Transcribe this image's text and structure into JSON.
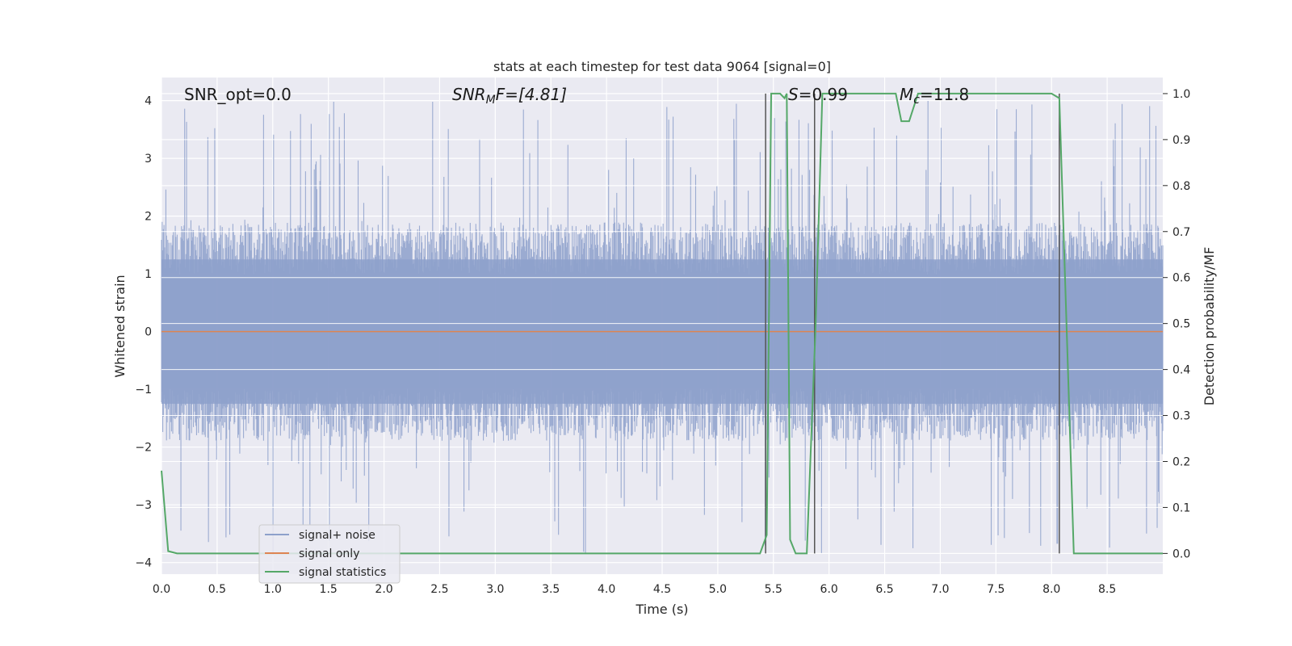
{
  "chart_data": {
    "type": "line",
    "title": "stats at each timestep for test data 9064 [signal=0]",
    "xlabel": "Time (s)",
    "ylabel": "Whitened strain",
    "y2label": "Detection probability/MF",
    "xlim": [
      0.0,
      9.0
    ],
    "ylim": [
      -4.2,
      4.4
    ],
    "y2lim": [
      -0.045,
      1.035
    ],
    "xticks": [
      "0.0",
      "0.5",
      "1.0",
      "1.5",
      "2.0",
      "2.5",
      "3.0",
      "3.5",
      "4.0",
      "4.5",
      "5.0",
      "5.5",
      "6.0",
      "6.5",
      "7.0",
      "7.5",
      "8.0",
      "8.5"
    ],
    "yticks": [
      "4",
      "3",
      "2",
      "1",
      "0",
      "−1",
      "−2",
      "−3",
      "−4"
    ],
    "y2ticks": [
      "1.0",
      "0.9",
      "0.8",
      "0.7",
      "0.6",
      "0.5",
      "0.4",
      "0.3",
      "0.2",
      "0.1",
      "0.0"
    ],
    "grid": true,
    "legend_position": "lower-left",
    "annotations": [
      {
        "id": "snr-opt",
        "text": "SNR_opt=0.0"
      },
      {
        "id": "snr-mf",
        "main": "SNR",
        "sub": "M",
        "tail": "F=[4.81]"
      },
      {
        "id": "s-stat",
        "main": "S",
        "tail": "=0.99"
      },
      {
        "id": "mc",
        "main": "M",
        "sub": "c",
        "tail": "=11.8"
      }
    ],
    "series": [
      {
        "name": "signal+ noise",
        "color": "#8da0cb",
        "envelope": {
          "upper_typical": 1.8,
          "lower_typical": -1.8,
          "max": 4.0,
          "min": -3.9
        }
      },
      {
        "name": "signal only",
        "color": "#dd8452",
        "values": "constant 0"
      },
      {
        "name": "signal statistics",
        "color": "#55a868",
        "axis": "right",
        "x": [
          0.0,
          0.06,
          0.14,
          5.38,
          5.44,
          5.48,
          5.56,
          5.6,
          5.62,
          5.65,
          5.7,
          5.75,
          5.8,
          5.88,
          5.94,
          6.6,
          6.65,
          6.72,
          6.8,
          8.0,
          8.07,
          8.2,
          9.0
        ],
        "values": [
          0.18,
          0.005,
          0.0,
          0.0,
          0.04,
          1.0,
          1.0,
          0.99,
          1.0,
          0.03,
          0.0,
          0.0,
          0.0,
          0.5,
          1.0,
          1.0,
          0.94,
          0.94,
          1.0,
          1.0,
          0.99,
          0.0,
          0.0
        ]
      }
    ],
    "vertical_lines_x": [
      5.43,
      5.87,
      8.07
    ]
  }
}
